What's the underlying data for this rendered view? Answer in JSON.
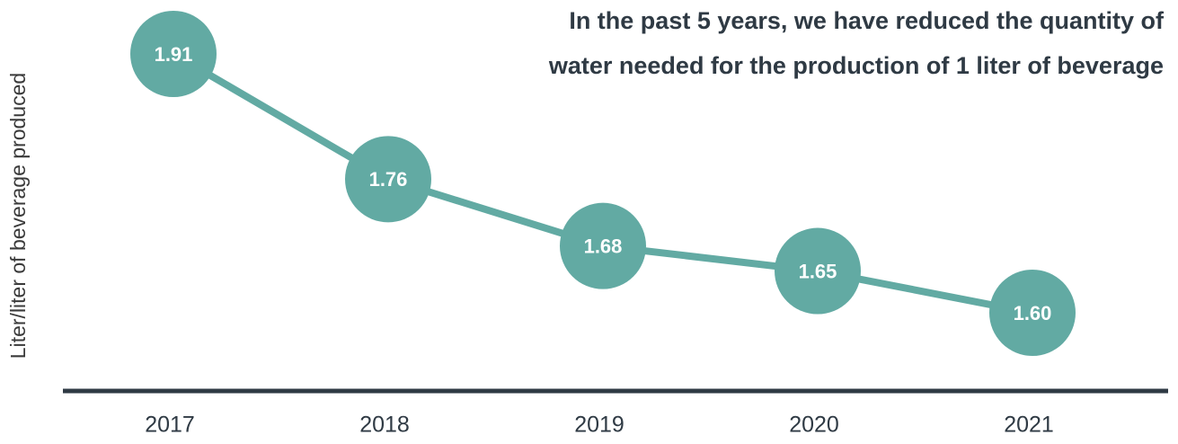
{
  "chart_data": {
    "type": "line",
    "title": [
      "In the past 5 years, we have reduced the quantity of",
      "water needed for the production of 1 liter of beverage"
    ],
    "y_label": "Liter/liter of beverage produced",
    "categories": [
      "2017",
      "2018",
      "2019",
      "2020",
      "2021"
    ],
    "values": [
      1.91,
      1.76,
      1.68,
      1.65,
      1.6
    ],
    "value_labels": [
      "1.91",
      "1.76",
      "1.68",
      "1.65",
      "1.60"
    ],
    "color": "#62aaa3"
  }
}
